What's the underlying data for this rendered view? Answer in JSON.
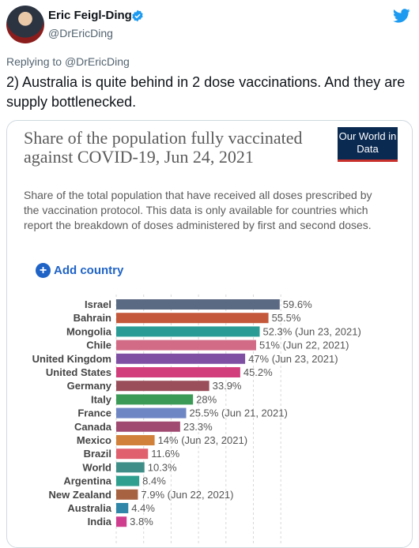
{
  "tweet": {
    "author_name": "Eric Feigl-Ding",
    "author_handle": "@DrEricDing",
    "replying_prefix": "Replying to",
    "replying_to": "@DrEricDing",
    "text": "2) Australia is quite behind in 2 dose vaccinations. And they are supply bottlenecked.",
    "icons": [
      "avatar",
      "verified-badge-icon",
      "twitter-bird-icon"
    ]
  },
  "colors": {
    "twitter_blue": "#1d9bf0",
    "owid_navy": "#0b2a52",
    "owid_red": "#c8302b",
    "add_blue": "#1f63c6"
  },
  "card": {
    "title": "Share of the population fully vaccinated against COVID-19, Jun 24, 2021",
    "subtitle": "Share of the total population that have received all doses prescribed by the vaccination protocol. This data is only available for countries which report the breakdown of doses administered by first and second doses.",
    "logo_text": "Our World in Data",
    "add_country_label": "Add country"
  },
  "chart_data": {
    "type": "bar",
    "orientation": "horizontal",
    "categories": [
      "Israel",
      "Bahrain",
      "Mongolia",
      "Chile",
      "United Kingdom",
      "United States",
      "Germany",
      "Italy",
      "France",
      "Canada",
      "Mexico",
      "Brazil",
      "World",
      "Argentina",
      "New Zealand",
      "Australia",
      "India"
    ],
    "values": [
      59.6,
      55.5,
      52.3,
      51,
      47,
      45.2,
      33.9,
      28,
      25.5,
      23.3,
      14,
      11.6,
      10.3,
      8.4,
      7.9,
      4.4,
      3.8
    ],
    "value_labels": [
      "59.6%",
      "55.5%",
      "52.3% (Jun 23, 2021)",
      "51% (Jun 22, 2021)",
      "47% (Jun 23, 2021)",
      "45.2%",
      "33.9%",
      "28%",
      "25.5% (Jun 21, 2021)",
      "23.3%",
      "14% (Jun 23, 2021)",
      "11.6%",
      "10.3%",
      "8.4%",
      "7.9% (Jun 22, 2021)",
      "4.4%",
      "3.8%"
    ],
    "colors": [
      "#5b6a83",
      "#c4583a",
      "#2b9c95",
      "#d26b86",
      "#7e4fa3",
      "#d23e7c",
      "#9a4e5a",
      "#3c9a57",
      "#6f86c4",
      "#a04a71",
      "#d1813a",
      "#e0606e",
      "#3f8f88",
      "#2f9f8f",
      "#a76242",
      "#2f86a8",
      "#cf3e8e"
    ],
    "xlim": [
      0,
      65
    ],
    "grid": "vertical dashed"
  }
}
